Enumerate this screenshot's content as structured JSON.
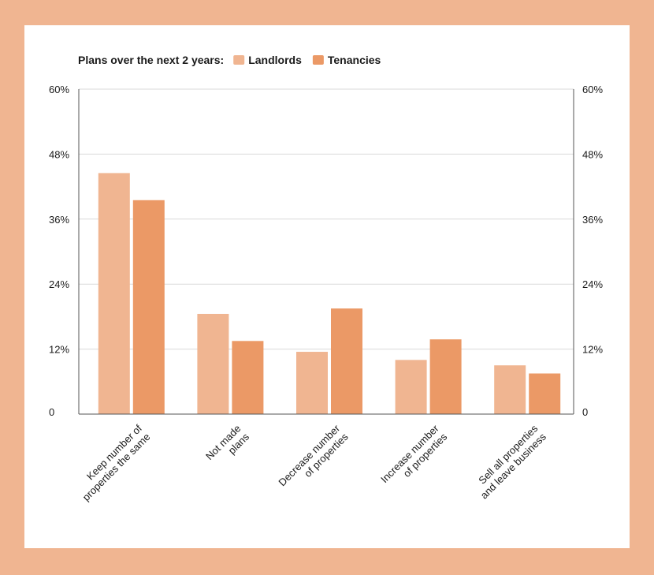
{
  "chart_data": {
    "type": "bar",
    "legend_title": "Plans over the next 2 years:",
    "categories": [
      [
        "Keep number of",
        "properties the same"
      ],
      [
        "Not made",
        "plans"
      ],
      [
        "Decrease number",
        "of properties"
      ],
      [
        "Increase number",
        "of properties"
      ],
      [
        "Sell all properties",
        "and leave business"
      ]
    ],
    "series": [
      {
        "name": "Landlords",
        "color": "#f0b591",
        "values": [
          44.5,
          18.5,
          11.5,
          10,
          9
        ]
      },
      {
        "name": "Tenancies",
        "color": "#eb9966",
        "values": [
          39.5,
          13.5,
          19.5,
          13.8,
          7.5
        ]
      }
    ],
    "ylim": [
      0,
      60
    ],
    "y_ticks": [
      "0",
      "12%",
      "24%",
      "36%",
      "48%",
      "60%"
    ],
    "y_tick_values": [
      0,
      12,
      24,
      36,
      48,
      60
    ],
    "grid": true,
    "legend_position": "top-left",
    "secondary_axis": true
  }
}
